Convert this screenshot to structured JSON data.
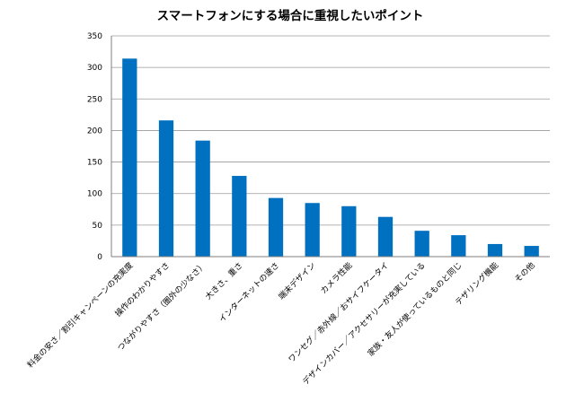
{
  "chart_data": {
    "type": "bar",
    "title": "スマートフォンにする場合に重視したいポイント",
    "xlabel": "",
    "ylabel": "",
    "ylim": [
      0,
      350
    ],
    "yticks": [
      0,
      50,
      100,
      150,
      200,
      250,
      300,
      350
    ],
    "grid": true,
    "legend": "none",
    "bar_color": "#0070C0",
    "categories": [
      "料金の安さ／割引キャンペーンの充実度",
      "操作のわかりやすさ",
      "つながりやすさ（圏外の少なさ）",
      "大きさ、重さ",
      "インターネットの速さ",
      "端末デザイン",
      "カメラ性能",
      "ワンセグ／赤外線／おサイフケータイ",
      "デザインカバー／アクセサリーが充実している",
      "家族・友人が使っているものと同じ",
      "テザリング機能",
      "その他"
    ],
    "values": [
      314,
      216,
      184,
      128,
      93,
      85,
      80,
      63,
      41,
      34,
      20,
      17
    ]
  }
}
